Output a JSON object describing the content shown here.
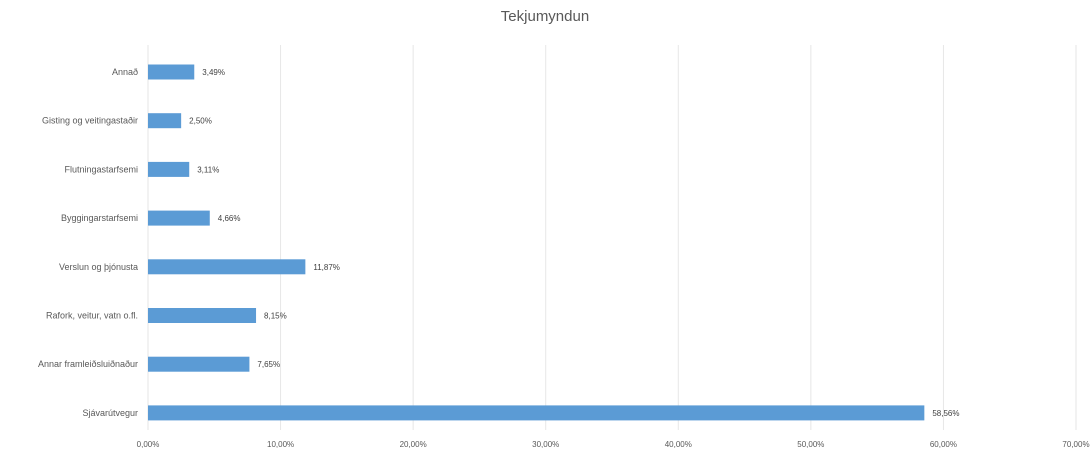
{
  "chart_data": {
    "type": "bar",
    "orientation": "horizontal",
    "title": "Tekjumyndun",
    "categories": [
      "Annað",
      "Gisting og veitingastaðir",
      "Flutningastarfsemi",
      "Byggingarstarfsemi",
      "Verslun og þjónusta",
      "Rafork, veitur, vatn o.fl.",
      "Annar framleiðsluiðnaður",
      "Sjávarútvegur"
    ],
    "values": [
      3.49,
      2.5,
      3.11,
      4.66,
      11.87,
      8.15,
      7.65,
      58.56
    ],
    "data_labels": [
      "3,49%",
      "2,50%",
      "3,11%",
      "4,66%",
      "11,87%",
      "8,15%",
      "7,65%",
      "58,56%"
    ],
    "xlim": [
      0,
      70
    ],
    "xticks": [
      0,
      10,
      20,
      30,
      40,
      50,
      60,
      70
    ],
    "xtick_labels": [
      "0,00%",
      "10,00%",
      "20,00%",
      "30,00%",
      "40,00%",
      "50,00%",
      "60,00%",
      "70,00%"
    ],
    "xlabel": "",
    "ylabel": "",
    "grid": "vertical",
    "bar_color": "#5b9bd5",
    "gridline_color": "#e6e6e6",
    "legend": "none"
  }
}
